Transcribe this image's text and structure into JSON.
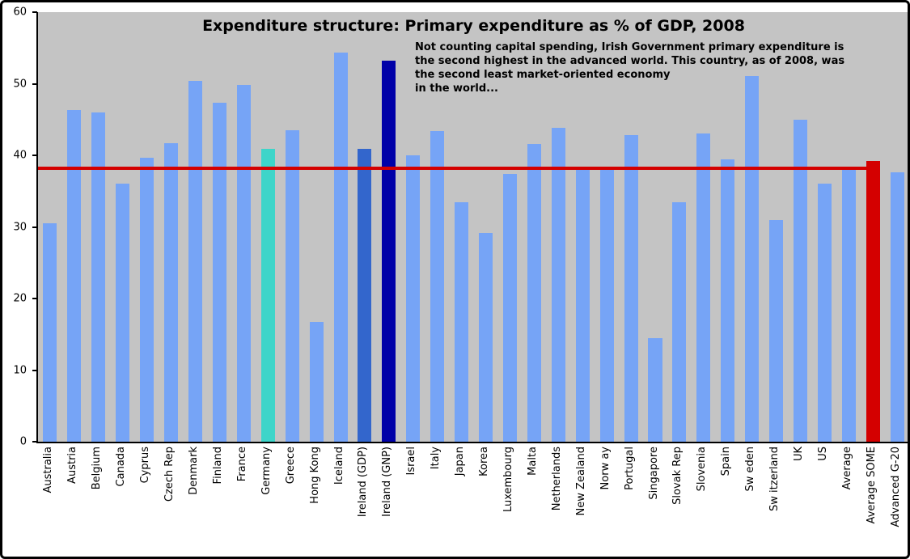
{
  "chart_data": {
    "type": "bar",
    "title": "Expenditure structure: Primary expenditure as % of GDP, 2008",
    "annotation": "Not counting capital spending, Irish Government primary expenditure is\nthe second highest in the advanced world. This country, as of 2008, was\nthe second least market-oriented economy\nin the world...",
    "categories": [
      "Australia",
      "Austria",
      "Belgium",
      "Canada",
      "Cyprus",
      "Czech Rep",
      "Denmark",
      "Finland",
      "France",
      "Germany",
      "Greece",
      "Hong Kong",
      "Iceland",
      "Ireland (GDP)",
      "Ireland (GNP)",
      "Israel",
      "Italy",
      "Japan",
      "Korea",
      "Luxembourg",
      "Malta",
      "Netherlands",
      "New Zealand",
      "Norw ay",
      "Portugal",
      "Singapore",
      "Slovak Rep",
      "Slovenia",
      "Spain",
      "Sw eden",
      "Sw itzerland",
      "UK",
      "US",
      "Average",
      "Average SOME",
      "Advanced G-20"
    ],
    "values": [
      30.5,
      46.3,
      46.0,
      36.0,
      39.7,
      41.7,
      50.4,
      47.4,
      49.8,
      40.9,
      43.5,
      16.7,
      54.4,
      40.9,
      53.2,
      40.0,
      43.4,
      33.4,
      29.1,
      37.4,
      41.6,
      43.8,
      38.1,
      38.2,
      42.8,
      14.5,
      33.5,
      43.0,
      39.4,
      51.1,
      31.0,
      45.0,
      36.0,
      38.1,
      39.2,
      37.6
    ],
    "bar_colors": [
      "",
      "",
      "",
      "",
      "",
      "",
      "",
      "",
      "",
      "#3DD5C9",
      "",
      "",
      "",
      "#3366CC",
      "#0000A8",
      "",
      "",
      "",
      "",
      "",
      "",
      "",
      "",
      "",
      "",
      "",
      "",
      "",
      "",
      "",
      "",
      "",
      "",
      "",
      "#D40000",
      ""
    ],
    "reference_line": {
      "value": 38.2,
      "ends_at_category": "Average SOME"
    },
    "ylim": [
      0,
      60
    ],
    "yticks": [
      0,
      10,
      20,
      30,
      40,
      50,
      60
    ],
    "xlabel": "",
    "ylabel": "",
    "grid": false,
    "legend": "none",
    "colors": {
      "default_bar": "#76A4F6",
      "germany_bar": "#3DD5C9",
      "ireland_gdp_bar": "#3366CC",
      "ireland_gnp_bar": "#0000A8",
      "average_some_bar": "#D40000",
      "reference_line": "#D40000",
      "plot_background": "#C4C4C4",
      "page_background": "#FFFFFF",
      "border": "#000000"
    }
  }
}
